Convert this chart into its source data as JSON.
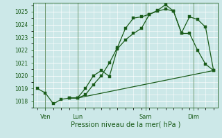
{
  "xlabel": "Pression niveau de la mer( hPa )",
  "bg_color": "#cce8e8",
  "grid_color": "#ffffff",
  "line_color": "#1a5c1a",
  "ylim": [
    1017.5,
    1025.7
  ],
  "xlim": [
    -0.5,
    22.5
  ],
  "yticks": [
    1018,
    1019,
    1020,
    1021,
    1022,
    1023,
    1024,
    1025
  ],
  "ytick_fontsize": 5.5,
  "xtick_fontsize": 6,
  "xlabel_fontsize": 7,
  "day_lines": [
    1.0,
    5.0,
    13.5,
    19.5
  ],
  "day_ticks": [
    {
      "label": "Ven",
      "x": 1.0
    },
    {
      "label": "Lun",
      "x": 5.0
    },
    {
      "label": "Sam",
      "x": 13.5
    },
    {
      "label": "Dim",
      "x": 19.5
    }
  ],
  "line1_x": [
    0,
    1,
    2,
    3,
    4,
    5,
    6,
    7,
    8,
    9,
    10,
    11,
    12,
    13,
    14,
    15,
    16,
    17,
    18,
    19,
    20,
    21,
    22
  ],
  "line1_y": [
    1019.0,
    1018.65,
    1017.8,
    1018.15,
    1018.25,
    1018.25,
    1019.0,
    1020.0,
    1020.4,
    1019.95,
    1022.1,
    1022.8,
    1023.3,
    1023.7,
    1024.8,
    1025.05,
    1025.2,
    1025.05,
    1023.3,
    1023.3,
    1022.0,
    1020.9,
    1020.4
  ],
  "line2_x": [
    4,
    5,
    6,
    7,
    8,
    9,
    10,
    11,
    12,
    13,
    14,
    15,
    16,
    17,
    18,
    19,
    20,
    21,
    22
  ],
  "line2_y": [
    1018.25,
    1018.25,
    1018.5,
    1019.3,
    1020.0,
    1021.0,
    1022.2,
    1023.7,
    1024.5,
    1024.6,
    1024.8,
    1025.1,
    1025.55,
    1025.05,
    1023.35,
    1024.6,
    1024.4,
    1023.8,
    1020.4
  ],
  "line3_x": [
    4,
    5,
    22
  ],
  "line3_y": [
    1018.25,
    1018.25,
    1020.4
  ]
}
